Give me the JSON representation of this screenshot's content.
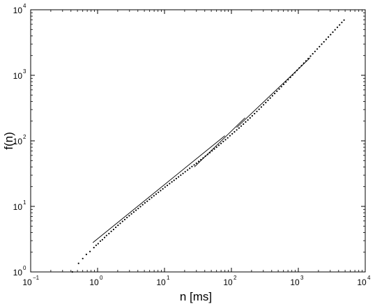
{
  "chart_data": {
    "type": "scatter",
    "xscale": "log",
    "yscale": "log",
    "xlabel": "n [ms]",
    "ylabel": "f(n)",
    "xlim": [
      0.1,
      10000
    ],
    "ylim": [
      1,
      10000
    ],
    "grid": false,
    "xticks": [
      {
        "value": 0.1,
        "base": "10",
        "exp": "−1"
      },
      {
        "value": 1,
        "base": "10",
        "exp": "0"
      },
      {
        "value": 10,
        "base": "10",
        "exp": "1"
      },
      {
        "value": 100,
        "base": "10",
        "exp": "2"
      },
      {
        "value": 1000,
        "base": "10",
        "exp": "3"
      },
      {
        "value": 10000,
        "base": "10",
        "exp": "4"
      }
    ],
    "yticks": [
      {
        "value": 1,
        "base": "10",
        "exp": "0"
      },
      {
        "value": 10,
        "base": "10",
        "exp": "1"
      },
      {
        "value": 100,
        "base": "10",
        "exp": "2"
      },
      {
        "value": 1000,
        "base": "10",
        "exp": "3"
      },
      {
        "value": 10000,
        "base": "10",
        "exp": "4"
      }
    ],
    "series": [
      {
        "type": "scatter",
        "color": "#000000",
        "x": [
          0.42,
          0.52,
          0.6,
          0.68,
          0.77,
          0.88,
          0.95,
          1.02,
          1.1,
          1.18,
          1.27,
          1.36,
          1.48,
          1.6,
          1.73,
          1.87,
          2.02,
          2.18,
          2.36,
          2.55,
          2.75,
          2.97,
          3.21,
          3.47,
          3.75,
          4.05,
          4.37,
          4.72,
          5.1,
          5.51,
          5.95,
          6.43,
          6.94,
          7.5,
          8.1,
          8.75,
          9.45,
          10.2,
          11.0,
          11.9,
          12.9,
          13.9,
          15.0,
          16.2,
          17.5,
          18.9,
          20.4,
          22.1,
          23.8,
          25.7,
          27.8,
          30.0,
          32.4,
          35.0,
          37.8,
          40.8,
          44.1,
          47.6,
          51.4,
          55.5,
          60.0,
          64.8,
          70.0,
          75.6,
          81.6,
          88.1,
          95.2,
          103,
          111,
          120,
          130,
          140,
          151,
          163,
          176,
          190,
          205,
          222,
          240,
          259,
          280,
          302,
          326,
          352,
          380,
          411,
          444,
          479,
          518,
          559,
          604,
          652,
          704,
          760,
          821,
          887,
          958,
          1035,
          1117,
          1206,
          1303,
          1407,
          1520,
          1641,
          1773,
          1914,
          2067,
          2233,
          2411,
          2604,
          2813,
          3038,
          3281,
          3543,
          3827,
          4133,
          4463,
          4820
        ],
        "y": [
          1.0,
          1.35,
          1.6,
          1.85,
          2.05,
          2.35,
          2.55,
          2.7,
          2.95,
          3.1,
          3.35,
          3.6,
          3.85,
          4.15,
          4.45,
          4.8,
          5.15,
          5.5,
          5.9,
          6.3,
          6.75,
          7.2,
          7.7,
          8.2,
          8.75,
          9.3,
          9.9,
          10.6,
          11.3,
          12.0,
          12.8,
          13.6,
          14.5,
          15.4,
          16.4,
          17.4,
          18.5,
          19.7,
          20.9,
          22.2,
          23.6,
          25.0,
          26.6,
          28.2,
          30.0,
          31.8,
          33.8,
          35.9,
          38.1,
          40.5,
          43.0,
          45.6,
          48.5,
          51.5,
          54.8,
          58.3,
          62.0,
          66.0,
          70.4,
          75.0,
          80.0,
          85.5,
          91.3,
          97.5,
          104,
          111,
          120,
          128,
          137,
          147,
          157,
          168,
          180,
          194,
          208,
          224,
          241,
          260,
          281,
          303,
          328,
          355,
          384,
          415,
          450,
          487,
          527,
          571,
          619,
          671,
          727,
          790,
          856,
          930,
          1010,
          1095,
          1190,
          1295,
          1405,
          1530,
          1660,
          1800,
          1960,
          2130,
          2310,
          2520,
          2740,
          2980,
          3240,
          3530,
          3840,
          4180,
          4550,
          4950,
          5400,
          5880,
          6400,
          6960
        ]
      },
      {
        "type": "line",
        "color": "#000000",
        "x": [
          0.85,
          80
        ],
        "y": [
          2.8,
          120
        ]
      },
      {
        "type": "line",
        "color": "#000000",
        "x": [
          28,
          160
        ],
        "y": [
          40,
          225
        ]
      },
      {
        "type": "line",
        "color": "#000000",
        "x": [
          120,
          1500
        ],
        "y": [
          160,
          1850
        ]
      }
    ]
  }
}
